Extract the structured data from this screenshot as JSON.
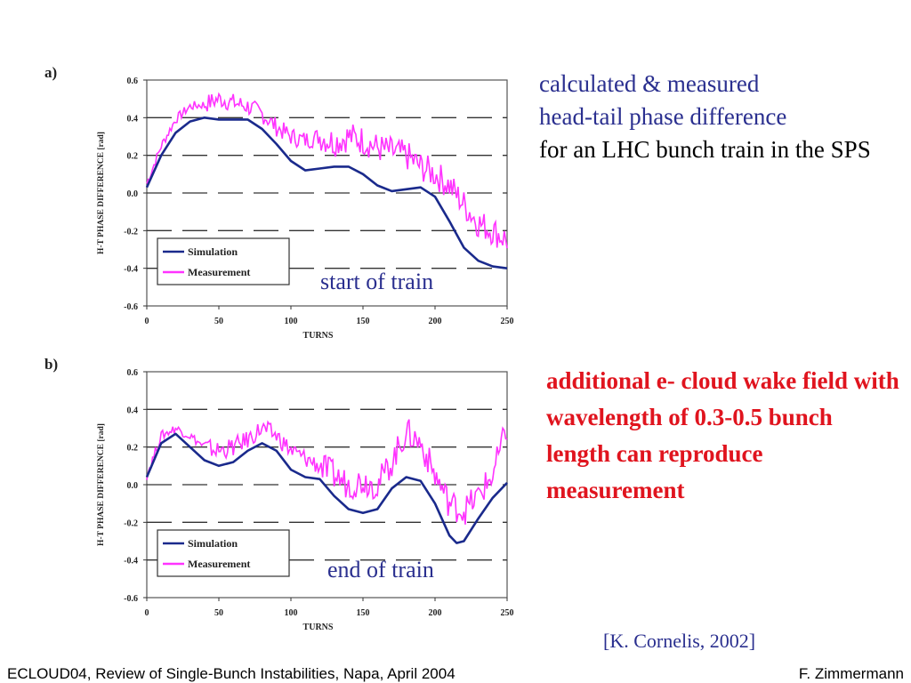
{
  "slide": {
    "description_blue_1": "calculated & measured",
    "description_blue_2": "head-tail phase difference",
    "description_black": "for an LHC bunch train in the SPS",
    "conclusion": "additional e- cloud wake field with wavelength of 0.3-0.5 bunch length can reproduce measurement",
    "citation": "[K. Cornelis, 2002]",
    "footer_left": "ECLOUD04, Review of Single-Bunch Instabilities, Napa, April 2004",
    "footer_right": "F. Zimmermann",
    "colors": {
      "blue_text": "#2a2f8f",
      "red_text": "#e0141e",
      "simulation": "#1a2a8c",
      "measurement": "#ff33ff"
    }
  },
  "chart_data": [
    {
      "type": "line",
      "panel": "a)",
      "annotation": "start of train",
      "xlabel": "TURNS",
      "ylabel": "H-T PHASE DIFFERENCE [rad]",
      "xlim": [
        0,
        250
      ],
      "ylim": [
        -0.6,
        0.6
      ],
      "xticks": [
        "0",
        "50",
        "100",
        "150",
        "200",
        "250"
      ],
      "yticks": [
        "0.6",
        "0.4",
        "0.2",
        "0.0",
        "-0.2",
        "-0.4",
        "-0.6"
      ],
      "grid": "dashed horizontal",
      "legend_position": "lower-left",
      "series": [
        {
          "name": "Simulation",
          "x": [
            0,
            10,
            20,
            30,
            40,
            50,
            60,
            70,
            80,
            90,
            100,
            110,
            120,
            130,
            140,
            150,
            160,
            170,
            180,
            190,
            200,
            210,
            220,
            230,
            240,
            250
          ],
          "values": [
            0.03,
            0.2,
            0.32,
            0.38,
            0.4,
            0.39,
            0.39,
            0.39,
            0.34,
            0.26,
            0.17,
            0.12,
            0.13,
            0.14,
            0.14,
            0.1,
            0.04,
            0.01,
            0.02,
            0.03,
            -0.02,
            -0.15,
            -0.29,
            -0.36,
            -0.39,
            -0.4
          ]
        },
        {
          "name": "Measurement",
          "x": [
            0,
            10,
            20,
            30,
            40,
            50,
            60,
            70,
            80,
            90,
            100,
            110,
            120,
            130,
            140,
            150,
            160,
            170,
            180,
            190,
            200,
            210,
            220,
            230,
            240,
            250
          ],
          "values": [
            0.05,
            0.25,
            0.39,
            0.46,
            0.47,
            0.5,
            0.48,
            0.46,
            0.42,
            0.35,
            0.3,
            0.28,
            0.3,
            0.27,
            0.3,
            0.28,
            0.24,
            0.22,
            0.2,
            0.14,
            0.1,
            0.04,
            -0.06,
            -0.16,
            -0.2,
            -0.25
          ]
        }
      ]
    },
    {
      "type": "line",
      "panel": "b)",
      "annotation": "end of train",
      "xlabel": "TURNS",
      "ylabel": "H-T PHASE DIFFERENCE [rad]",
      "xlim": [
        0,
        250
      ],
      "ylim": [
        -0.6,
        0.6
      ],
      "xticks": [
        "0",
        "50",
        "100",
        "150",
        "200",
        "250"
      ],
      "yticks": [
        "0.6",
        "0.4",
        "0.2",
        "0.0",
        "-0.2",
        "-0.4",
        "-0.6"
      ],
      "grid": "dashed horizontal",
      "legend_position": "lower-left",
      "series": [
        {
          "name": "Simulation",
          "x": [
            0,
            10,
            20,
            30,
            40,
            50,
            60,
            70,
            80,
            90,
            100,
            110,
            120,
            130,
            140,
            150,
            160,
            170,
            180,
            190,
            200,
            210,
            215,
            220,
            230,
            240,
            250
          ],
          "values": [
            0.04,
            0.22,
            0.27,
            0.2,
            0.13,
            0.1,
            0.12,
            0.18,
            0.22,
            0.18,
            0.08,
            0.04,
            0.03,
            -0.06,
            -0.13,
            -0.15,
            -0.13,
            -0.02,
            0.04,
            0.02,
            -0.1,
            -0.27,
            -0.31,
            -0.3,
            -0.18,
            -0.07,
            0.01
          ]
        },
        {
          "name": "Measurement",
          "x": [
            0,
            10,
            20,
            30,
            40,
            50,
            60,
            70,
            80,
            90,
            100,
            110,
            120,
            130,
            140,
            150,
            160,
            170,
            180,
            190,
            200,
            210,
            220,
            230,
            240,
            250
          ],
          "values": [
            0.05,
            0.26,
            0.3,
            0.26,
            0.2,
            0.18,
            0.2,
            0.24,
            0.3,
            0.26,
            0.18,
            0.14,
            0.1,
            0.05,
            0.0,
            0.02,
            0.0,
            0.12,
            0.28,
            0.22,
            0.05,
            -0.1,
            -0.14,
            -0.06,
            0.05,
            0.3
          ]
        }
      ]
    }
  ]
}
